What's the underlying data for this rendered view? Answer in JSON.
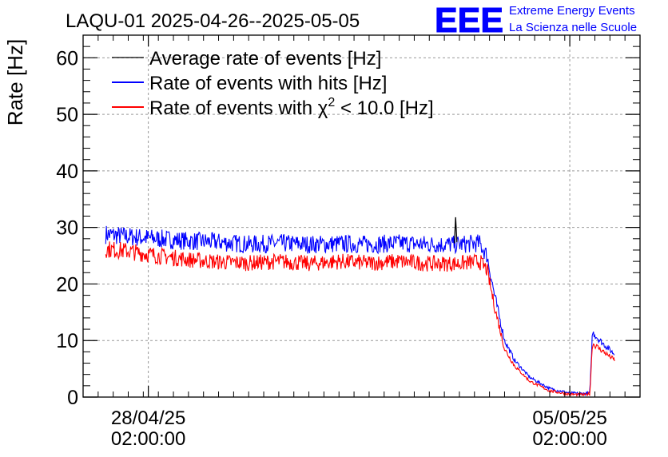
{
  "header": {
    "title": "LAQU-01 2025-04-26--2025-05-05",
    "logo_text": "EEE",
    "org_line1": "Extreme Energy Events",
    "org_line2": "La Scienza nelle Scuole"
  },
  "colors": {
    "average": "#000000",
    "hits": "#0000ff",
    "chi2": "#ff0000",
    "logo": "#0000ff",
    "grid": "#999999"
  },
  "chart_data": {
    "type": "line",
    "title": "LAQU-01 2025-04-26--2025-05-05",
    "ylabel": "Rate [Hz]",
    "xlabel": "",
    "ylim": [
      0,
      64
    ],
    "yticks": [
      0,
      10,
      20,
      30,
      40,
      50,
      60
    ],
    "xlim": [
      "2025-04-27T00:00:00",
      "2025-05-06T06:00:00"
    ],
    "xticks": [
      {
        "value": "2025-04-28T02:00:00",
        "label_date": "28/04/25",
        "label_time": "02:00:00"
      },
      {
        "value": "2025-05-05T02:00:00",
        "label_date": "05/05/25",
        "label_time": "02:00:00"
      }
    ],
    "grid": true,
    "legend_position": "top-left",
    "legend": [
      {
        "key": "average",
        "label": "Average rate of events [Hz]"
      },
      {
        "key": "hits",
        "label": "Rate of events with hits [Hz]"
      },
      {
        "key": "chi2",
        "label_prefix": "Rate of events with χ",
        "label_sup": "2",
        "label_suffix": " < 10.0 [Hz]"
      }
    ],
    "series": [
      {
        "key": "hits",
        "name": "Rate of events with hits [Hz]",
        "points": [
          [
            "2025-04-27T09:00",
            28.8
          ],
          [
            "2025-04-27T18:00",
            28.4
          ],
          [
            "2025-04-28T06:00",
            28.0
          ],
          [
            "2025-04-28T18:00",
            27.6
          ],
          [
            "2025-04-29T06:00",
            27.4
          ],
          [
            "2025-04-29T18:00",
            27.0
          ],
          [
            "2025-04-30T06:00",
            27.2
          ],
          [
            "2025-04-30T18:00",
            27.0
          ],
          [
            "2025-05-01T06:00",
            27.1
          ],
          [
            "2025-05-01T18:00",
            27.0
          ],
          [
            "2025-05-02T06:00",
            27.2
          ],
          [
            "2025-05-02T18:00",
            27.0
          ],
          [
            "2025-05-03T06:00",
            27.0
          ],
          [
            "2025-05-03T14:00",
            27.2
          ],
          [
            "2025-05-03T17:00",
            25.0
          ],
          [
            "2025-05-03T20:00",
            18.0
          ],
          [
            "2025-05-04T00:00",
            10.0
          ],
          [
            "2025-05-04T04:00",
            6.5
          ],
          [
            "2025-05-04T10:00",
            3.5
          ],
          [
            "2025-05-04T18:00",
            1.5
          ],
          [
            "2025-05-05T02:00",
            0.7
          ],
          [
            "2025-05-05T08:00",
            0.6
          ],
          [
            "2025-05-05T10:00",
            0.8
          ],
          [
            "2025-05-05T11:00",
            11.5
          ],
          [
            "2025-05-05T14:00",
            10.0
          ],
          [
            "2025-05-05T20:00",
            7.5
          ]
        ]
      },
      {
        "key": "chi2",
        "name": "Rate of events with χ2 < 10.0 [Hz]",
        "points": [
          [
            "2025-04-27T09:00",
            26.2
          ],
          [
            "2025-04-27T18:00",
            25.8
          ],
          [
            "2025-04-28T06:00",
            25.0
          ],
          [
            "2025-04-28T18:00",
            24.3
          ],
          [
            "2025-04-29T06:00",
            23.9
          ],
          [
            "2025-04-29T18:00",
            23.7
          ],
          [
            "2025-04-30T06:00",
            24.0
          ],
          [
            "2025-04-30T18:00",
            23.6
          ],
          [
            "2025-05-01T06:00",
            24.0
          ],
          [
            "2025-05-01T18:00",
            23.7
          ],
          [
            "2025-05-02T06:00",
            24.0
          ],
          [
            "2025-05-02T18:00",
            23.6
          ],
          [
            "2025-05-03T06:00",
            23.6
          ],
          [
            "2025-05-03T14:00",
            24.0
          ],
          [
            "2025-05-03T17:00",
            22.5
          ],
          [
            "2025-05-03T20:00",
            16.0
          ],
          [
            "2025-05-04T00:00",
            8.5
          ],
          [
            "2025-05-04T04:00",
            5.5
          ],
          [
            "2025-05-04T10:00",
            2.8
          ],
          [
            "2025-05-04T18:00",
            1.1
          ],
          [
            "2025-05-05T02:00",
            0.5
          ],
          [
            "2025-05-05T08:00",
            0.4
          ],
          [
            "2025-05-05T10:00",
            0.6
          ],
          [
            "2025-05-05T11:00",
            9.5
          ],
          [
            "2025-05-05T14:00",
            8.5
          ],
          [
            "2025-05-05T20:00",
            6.5
          ]
        ]
      },
      {
        "key": "average",
        "name": "Average rate of events [Hz]",
        "points": [
          [
            "2025-05-03T04:00",
            27.2
          ],
          [
            "2025-05-03T04:30",
            31.8
          ],
          [
            "2025-05-03T05:00",
            27.4
          ]
        ]
      }
    ]
  }
}
